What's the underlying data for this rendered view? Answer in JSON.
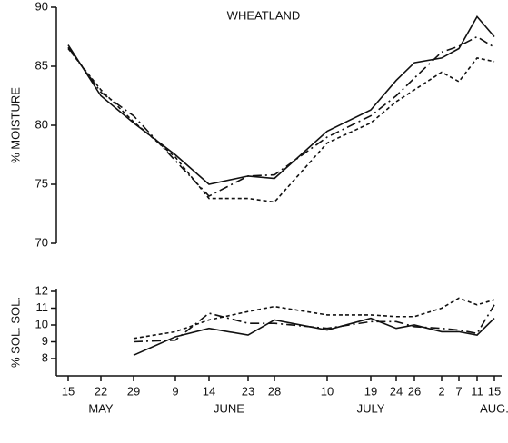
{
  "chart_data": [
    {
      "type": "line",
      "title": "WHEATLAND",
      "y_label": "% MOISTURE",
      "ylim": [
        70,
        90
      ],
      "yticks": [
        70,
        75,
        80,
        85,
        90
      ],
      "series": [
        {
          "color": "#111111",
          "style": "solid",
          "values": [
            86.8,
            82.5,
            80.2,
            77.5,
            75.0,
            75.7,
            75.5,
            79.5,
            81.3,
            83.8,
            85.3,
            85.7,
            86.5,
            89.2,
            87.5
          ]
        },
        {
          "color": "#111111",
          "style": "dashdot",
          "values": [
            86.6,
            82.8,
            80.8,
            77.0,
            74.0,
            75.7,
            75.8,
            79.0,
            80.8,
            82.5,
            84.0,
            86.2,
            86.7,
            87.5,
            86.6
          ]
        },
        {
          "color": "#111111",
          "style": "dotted",
          "values": [
            86.5,
            83.0,
            80.3,
            77.3,
            73.8,
            73.8,
            73.5,
            78.5,
            80.2,
            82.0,
            83.0,
            84.5,
            83.7,
            85.7,
            85.4
          ]
        }
      ]
    },
    {
      "type": "line",
      "y_label": "% SOL. SOL.",
      "categories": [
        "15",
        "22",
        "29",
        "9",
        "14",
        "23",
        "28",
        "10",
        "19",
        "24",
        "26",
        "2",
        "7",
        "11",
        "15"
      ],
      "x_group_labels": [
        "MAY",
        "JUNE",
        "JULY",
        "AUG."
      ],
      "ylim": [
        7.3,
        12
      ],
      "yticks": [
        8,
        9,
        10,
        11,
        12
      ],
      "series": [
        {
          "color": "#111111",
          "style": "solid",
          "values": [
            null,
            null,
            8.2,
            9.3,
            9.8,
            9.4,
            10.3,
            9.7,
            10.4,
            9.8,
            10.0,
            9.6,
            9.6,
            9.4,
            10.4
          ]
        },
        {
          "color": "#111111",
          "style": "dashdot",
          "values": [
            null,
            null,
            9.0,
            9.1,
            10.7,
            10.1,
            10.1,
            9.8,
            10.2,
            10.2,
            9.9,
            9.8,
            9.7,
            9.5,
            11.2
          ]
        },
        {
          "color": "#111111",
          "style": "dotted",
          "values": [
            null,
            null,
            9.2,
            9.6,
            10.3,
            10.8,
            11.1,
            10.6,
            10.6,
            10.5,
            10.5,
            11.0,
            11.6,
            11.2,
            11.5
          ]
        }
      ]
    }
  ]
}
